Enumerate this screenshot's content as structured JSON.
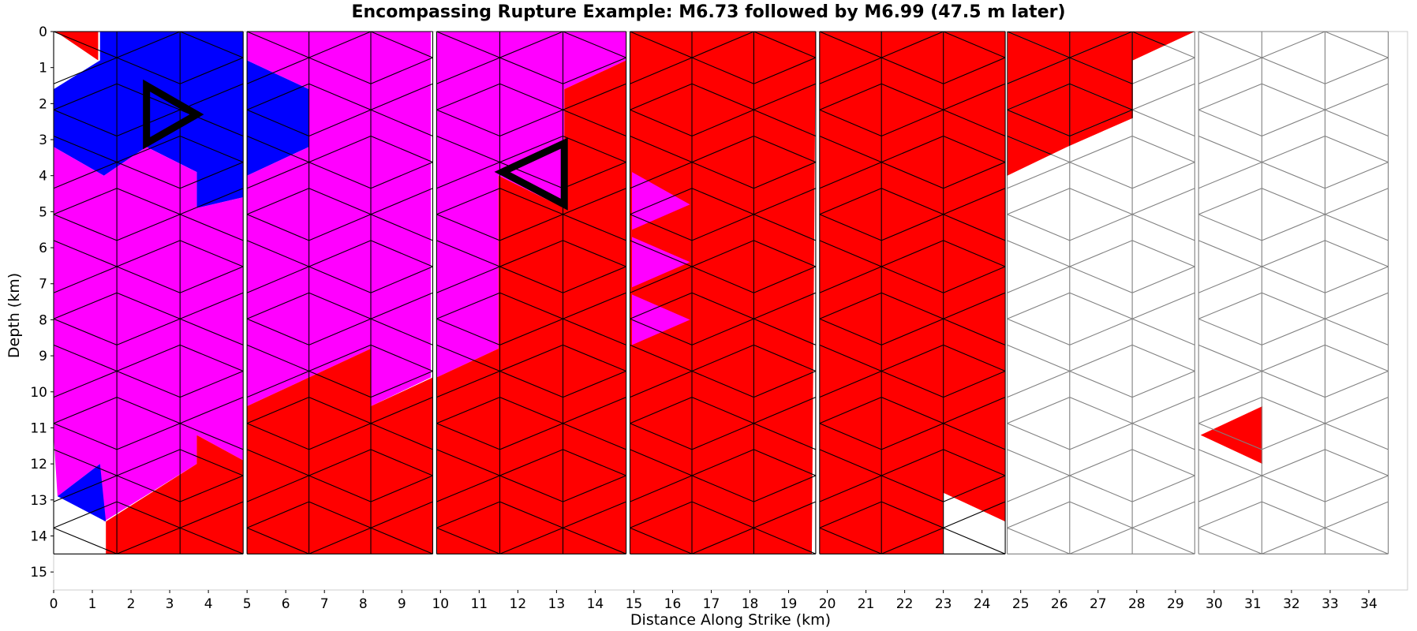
{
  "chart_data": {
    "type": "heatmap",
    "title": "Encompassing Rupture Example: M6.73 followed by M6.99 (47.5 m later)",
    "xlabel": "Distance Along Strike (km)",
    "ylabel": "Depth (km)",
    "xlim": [
      0,
      35
    ],
    "ylim": [
      15.5,
      0
    ],
    "y_inverted": true,
    "grid": false,
    "legend": "none",
    "xticks": [
      0,
      1,
      2,
      3,
      4,
      5,
      6,
      7,
      8,
      9,
      10,
      11,
      12,
      13,
      14,
      15,
      16,
      17,
      18,
      19,
      20,
      21,
      22,
      23,
      24,
      25,
      26,
      27,
      28,
      29,
      30,
      31,
      32,
      33,
      34
    ],
    "yticks": [
      0,
      1,
      2,
      3,
      4,
      5,
      6,
      7,
      8,
      9,
      10,
      11,
      12,
      13,
      14,
      15
    ],
    "colors": {
      "both_ruptures": "#ff0000",
      "first_rupture": "#0000ff",
      "second_rupture": "#ff00ff",
      "unruptured_fill": "#ffffff",
      "ruptured_edge": "#000000",
      "unruptured_edge": "#808080",
      "hypocenter_marker": "#000000"
    },
    "mesh": {
      "element_shape": "triangle",
      "strike_spacing_km": 1.6,
      "depth_spacing_km": 1.45,
      "max_depth_km": 14.5
    },
    "fault_sections": [
      {
        "name": "section-1",
        "x_range_km": [
          0,
          4.9
        ],
        "regions": [
          {
            "class": "both_ruptures",
            "polygon": [
              [
                0.05,
                0
              ],
              [
                1.15,
                0
              ],
              [
                1.15,
                0.8
              ]
            ]
          },
          {
            "class": "first_rupture",
            "polygon": [
              [
                1.2,
                0
              ],
              [
                4.9,
                0
              ],
              [
                4.9,
                4.6
              ],
              [
                3.7,
                4.9
              ],
              [
                3.7,
                3.9
              ],
              [
                2.4,
                3.2
              ],
              [
                1.3,
                4.0
              ],
              [
                0,
                3.2
              ],
              [
                0,
                1.6
              ],
              [
                1.2,
                0.8
              ]
            ]
          },
          {
            "class": "second_rupture",
            "polygon": [
              [
                0,
                3.2
              ],
              [
                1.3,
                4.0
              ],
              [
                2.4,
                3.2
              ],
              [
                3.7,
                3.9
              ],
              [
                3.7,
                4.9
              ],
              [
                4.9,
                4.6
              ],
              [
                4.9,
                11.9
              ],
              [
                3.7,
                11.2
              ],
              [
                3.7,
                12.0
              ],
              [
                1.3,
                13.6
              ],
              [
                1.2,
                12.0
              ],
              [
                0.1,
                12.9
              ],
              [
                0,
                11.2
              ]
            ]
          },
          {
            "class": "first_rupture",
            "polygon": [
              [
                0.1,
                12.9
              ],
              [
                1.2,
                12.0
              ],
              [
                1.35,
                13.6
              ]
            ]
          },
          {
            "class": "both_ruptures",
            "polygon": [
              [
                1.35,
                13.6
              ],
              [
                3.7,
                12.0
              ],
              [
                3.7,
                11.2
              ],
              [
                4.9,
                11.9
              ],
              [
                4.9,
                14.5
              ],
              [
                1.35,
                14.5
              ]
            ]
          }
        ]
      },
      {
        "name": "section-2",
        "x_range_km": [
          5.0,
          9.8
        ],
        "regions": [
          {
            "class": "first_rupture",
            "polygon": [
              [
                5.0,
                0.8
              ],
              [
                6.6,
                1.6
              ],
              [
                6.6,
                3.2
              ],
              [
                5.0,
                4.0
              ]
            ]
          },
          {
            "class": "second_rupture",
            "polygon": [
              [
                5.0,
                0
              ],
              [
                9.75,
                0
              ],
              [
                9.75,
                9.6
              ],
              [
                8.2,
                10.4
              ],
              [
                8.2,
                8.8
              ],
              [
                6.6,
                9.6
              ],
              [
                5.0,
                10.4
              ],
              [
                5.0,
                4.0
              ],
              [
                6.6,
                3.2
              ],
              [
                6.6,
                1.6
              ],
              [
                5.0,
                0.8
              ]
            ]
          },
          {
            "class": "both_ruptures",
            "polygon": [
              [
                5.0,
                10.4
              ],
              [
                6.6,
                9.6
              ],
              [
                8.2,
                8.8
              ],
              [
                8.2,
                10.4
              ],
              [
                9.8,
                9.6
              ],
              [
                9.8,
                14.5
              ],
              [
                5.0,
                14.5
              ]
            ]
          }
        ]
      },
      {
        "name": "section-3",
        "x_range_km": [
          9.9,
          14.8
        ],
        "regions": [
          {
            "class": "second_rupture",
            "polygon": [
              [
                9.9,
                0
              ],
              [
                14.8,
                0
              ],
              [
                14.8,
                0.8
              ],
              [
                13.2,
                1.6
              ],
              [
                13.2,
                4.9
              ],
              [
                11.5,
                4.0
              ],
              [
                11.5,
                8.8
              ],
              [
                9.9,
                9.6
              ]
            ]
          },
          {
            "class": "both_ruptures",
            "polygon": [
              [
                14.8,
                0.8
              ],
              [
                14.8,
                14.5
              ],
              [
                9.9,
                14.5
              ],
              [
                9.9,
                9.6
              ],
              [
                11.5,
                8.8
              ],
              [
                11.5,
                4.0
              ],
              [
                13.2,
                4.9
              ],
              [
                13.2,
                1.6
              ]
            ]
          }
        ]
      },
      {
        "name": "section-4",
        "x_range_km": [
          14.9,
          19.7
        ],
        "regions": [
          {
            "class": "both_ruptures",
            "polygon": [
              [
                14.9,
                0
              ],
              [
                19.7,
                0
              ],
              [
                19.6,
                14.5
              ],
              [
                14.9,
                14.5
              ]
            ]
          },
          {
            "class": "second_rupture",
            "polygon": [
              [
                14.95,
                3.9
              ],
              [
                16.45,
                4.8
              ],
              [
                14.95,
                5.5
              ]
            ]
          },
          {
            "class": "second_rupture",
            "polygon": [
              [
                14.95,
                5.7
              ],
              [
                16.45,
                6.4
              ],
              [
                14.95,
                7.1
              ]
            ]
          },
          {
            "class": "second_rupture",
            "polygon": [
              [
                14.95,
                7.3
              ],
              [
                16.45,
                8.0
              ],
              [
                14.95,
                8.7
              ]
            ]
          }
        ]
      },
      {
        "name": "section-5",
        "x_range_km": [
          19.8,
          24.6
        ],
        "regions": [
          {
            "class": "both_ruptures",
            "polygon": [
              [
                19.8,
                0
              ],
              [
                24.6,
                0
              ],
              [
                24.6,
                13.6
              ],
              [
                23.0,
                12.8
              ],
              [
                23.0,
                14.5
              ],
              [
                19.8,
                14.5
              ]
            ]
          }
        ]
      },
      {
        "name": "section-6",
        "x_range_km": [
          24.65,
          29.5
        ],
        "regions": [
          {
            "class": "both_ruptures",
            "polygon": [
              [
                24.65,
                0
              ],
              [
                29.5,
                0
              ],
              [
                27.9,
                0.8
              ],
              [
                27.9,
                2.4
              ],
              [
                26.2,
                3.2
              ],
              [
                24.65,
                4.0
              ]
            ]
          }
        ]
      },
      {
        "name": "section-7",
        "x_range_km": [
          29.6,
          34.5
        ],
        "regions": [
          {
            "class": "both_ruptures",
            "polygon": [
              [
                29.65,
                11.2
              ],
              [
                31.25,
                10.4
              ],
              [
                31.25,
                12.0
              ]
            ]
          }
        ]
      }
    ],
    "hypocenters": [
      {
        "event": "M6.73",
        "triangle": [
          [
            2.4,
            1.5
          ],
          [
            3.7,
            2.3
          ],
          [
            2.4,
            3.1
          ]
        ]
      },
      {
        "event": "M6.99",
        "triangle": [
          [
            13.2,
            3.1
          ],
          [
            11.6,
            3.9
          ],
          [
            13.2,
            4.8
          ]
        ]
      }
    ]
  }
}
